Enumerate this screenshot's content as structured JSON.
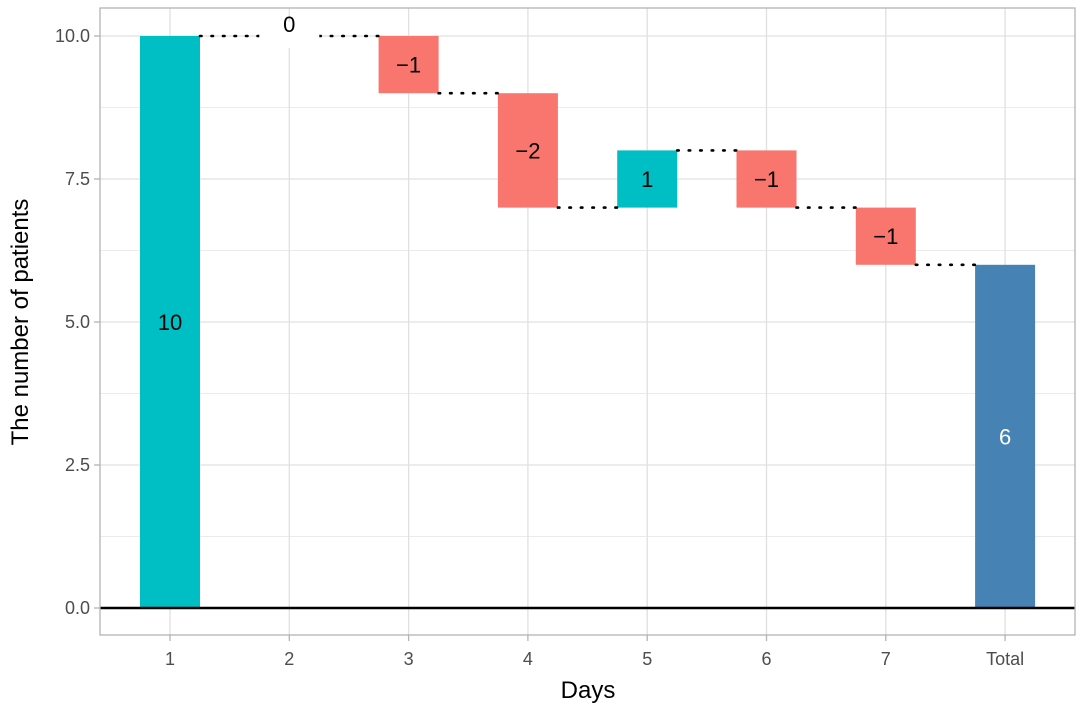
{
  "chart_data": {
    "type": "bar",
    "subtype": "waterfall",
    "title": "",
    "xlabel": "Days",
    "ylabel": "The number of patients",
    "categories": [
      "1",
      "2",
      "3",
      "4",
      "5",
      "6",
      "7",
      "Total"
    ],
    "values": [
      10,
      0,
      -1,
      -2,
      1,
      -1,
      -1,
      6
    ],
    "starts": [
      0,
      10,
      10,
      9,
      7,
      8,
      7,
      0
    ],
    "ends": [
      10,
      10,
      9,
      7,
      8,
      7,
      6,
      6
    ],
    "labels": [
      "10",
      "0",
      "−1",
      "−2",
      "1",
      "−1",
      "−1",
      "6"
    ],
    "bar_colors": [
      "#00BFC4",
      "#00BFC4",
      "#F8766D",
      "#F8766D",
      "#00BFC4",
      "#F8766D",
      "#F8766D",
      "#4682B4"
    ],
    "label_colors": [
      "#000000",
      "#000000",
      "#000000",
      "#000000",
      "#000000",
      "#000000",
      "#000000",
      "#ffffff"
    ],
    "ylim": [
      -0.5,
      10.5
    ],
    "yticks": [
      0.0,
      2.5,
      5.0,
      7.5,
      10.0
    ],
    "ytick_labels": [
      "0.0",
      "2.5",
      "5.0",
      "7.5",
      "10.0"
    ],
    "grid": true,
    "legend": "none",
    "connectors": "dotted",
    "baseline": 0
  }
}
